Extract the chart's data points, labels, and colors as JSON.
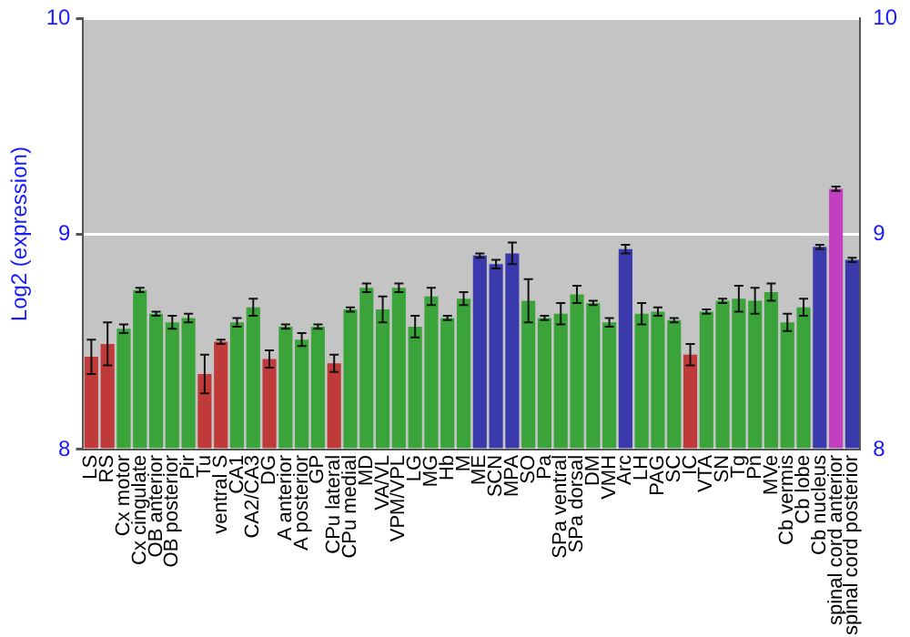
{
  "chart_data": {
    "type": "bar",
    "ylabel": "Log2 (expression)",
    "categories": [
      "LS",
      "RS",
      "Cx motor",
      "Cx cingulate",
      "OB anterior",
      "OB posterior",
      "Pir",
      "Tu",
      "ventral S",
      "CA1",
      "CA2/CA3",
      "DG",
      "A anterior",
      "A posterior",
      "GP",
      "CPu lateral",
      "CPu medial",
      "MD",
      "VA/VL",
      "VPM/VPL",
      "LG",
      "MG",
      "Hb",
      "M",
      "ME",
      "SCN",
      "MPA",
      "SO",
      "Pa",
      "SPa ventral",
      "SPa dorsal",
      "DM",
      "VMH",
      "Arc",
      "LH",
      "PAG",
      "SC",
      "IC",
      "VTA",
      "SN",
      "Tg",
      "Pn",
      "MVe",
      "Cb vermis",
      "Cb lobe",
      "Cb nucleus",
      "spinal cord anterior",
      "spinal cord posterior"
    ],
    "values": [
      8.43,
      8.49,
      8.56,
      8.74,
      8.63,
      8.59,
      8.61,
      8.35,
      8.5,
      8.59,
      8.66,
      8.42,
      8.57,
      8.51,
      8.57,
      8.4,
      8.65,
      8.75,
      8.65,
      8.75,
      8.57,
      8.71,
      8.61,
      8.7,
      8.9,
      8.86,
      8.91,
      8.69,
      8.61,
      8.63,
      8.72,
      8.68,
      8.59,
      8.93,
      8.63,
      8.64,
      8.6,
      8.44,
      8.64,
      8.69,
      8.7,
      8.69,
      8.73,
      8.59,
      8.66,
      8.94,
      9.21,
      8.88
    ],
    "errors": [
      0.08,
      0.1,
      0.02,
      0.01,
      0.01,
      0.03,
      0.02,
      0.09,
      0.01,
      0.02,
      0.04,
      0.04,
      0.01,
      0.03,
      0.01,
      0.04,
      0.01,
      0.02,
      0.06,
      0.02,
      0.05,
      0.04,
      0.01,
      0.03,
      0.01,
      0.02,
      0.05,
      0.1,
      0.01,
      0.05,
      0.04,
      0.01,
      0.02,
      0.02,
      0.05,
      0.02,
      0.01,
      0.05,
      0.01,
      0.01,
      0.06,
      0.06,
      0.04,
      0.04,
      0.04,
      0.01,
      0.01,
      0.01
    ],
    "colors": [
      "#c03a3a",
      "#c03a3a",
      "#3aa43a",
      "#3aa43a",
      "#3aa43a",
      "#3aa43a",
      "#3aa43a",
      "#c03a3a",
      "#c03a3a",
      "#3aa43a",
      "#3aa43a",
      "#c03a3a",
      "#3aa43a",
      "#3aa43a",
      "#3aa43a",
      "#c03a3a",
      "#3aa43a",
      "#3aa43a",
      "#3aa43a",
      "#3aa43a",
      "#3aa43a",
      "#3aa43a",
      "#3aa43a",
      "#3aa43a",
      "#3a3aac",
      "#3a3aac",
      "#3a3aac",
      "#3aa43a",
      "#3aa43a",
      "#3aa43a",
      "#3aa43a",
      "#3aa43a",
      "#3aa43a",
      "#3a3aac",
      "#3aa43a",
      "#3aa43a",
      "#3aa43a",
      "#c03a3a",
      "#3aa43a",
      "#3aa43a",
      "#3aa43a",
      "#3aa43a",
      "#3aa43a",
      "#3aa43a",
      "#3aa43a",
      "#3a3aac",
      "#c040c0",
      "#3a3aac"
    ],
    "ylim": [
      8,
      10
    ],
    "yticks": [
      8,
      9,
      10
    ],
    "y2lim": [
      8,
      10
    ],
    "y2ticks": [
      8,
      9,
      10
    ],
    "grid": "y",
    "legend": false
  }
}
